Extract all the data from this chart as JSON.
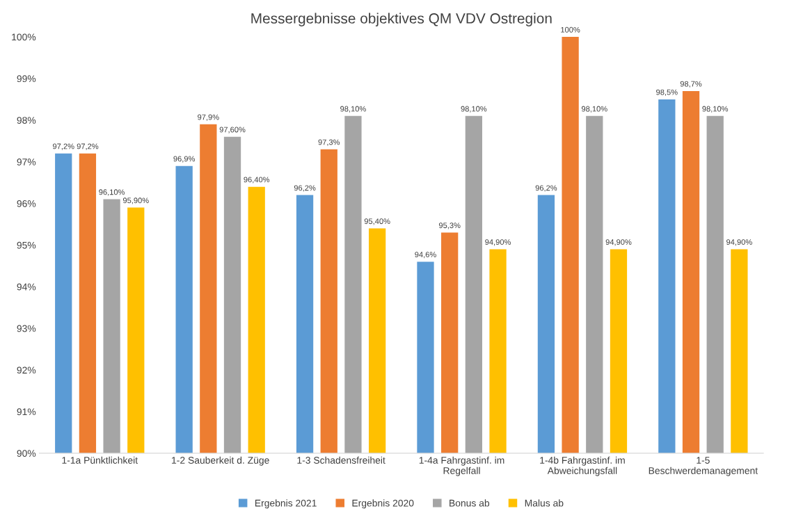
{
  "chart_data": {
    "type": "bar",
    "title": "Messergebnisse objektives QM VDV Ostregion",
    "categories": [
      "1-1a Pünktlichkeit",
      "1-2 Sauberkeit d. Züge",
      "1-3 Schadensfreiheit",
      "1-4a Fahrgastinf. im\nRegelfall",
      "1-4b Fahrgastinf. im\nAbweichungsfall",
      "1-5\nBeschwerdemanagement"
    ],
    "series": [
      {
        "name": "Ergebnis 2021",
        "color": "#5b9bd5",
        "values": [
          97.2,
          96.9,
          96.2,
          94.6,
          96.2,
          98.5
        ],
        "value_labels": [
          "97,2%",
          "96,9%",
          "96,2%",
          "94,6%",
          "96,2%",
          "98,5%"
        ]
      },
      {
        "name": "Ergebnis 2020",
        "color": "#ed7d31",
        "values": [
          97.2,
          97.9,
          97.3,
          95.3,
          100,
          98.7
        ],
        "value_labels": [
          "97,2%",
          "97,9%",
          "97,3%",
          "95,3%",
          "100%",
          "98,7%"
        ]
      },
      {
        "name": "Bonus ab",
        "color": "#a5a5a5",
        "values": [
          96.1,
          97.6,
          98.1,
          98.1,
          98.1,
          98.1
        ],
        "value_labels": [
          "96,10%",
          "97,60%",
          "98,10%",
          "98,10%",
          "98,10%",
          "98,10%"
        ]
      },
      {
        "name": "Malus ab",
        "color": "#ffc000",
        "values": [
          95.9,
          96.4,
          95.4,
          94.9,
          94.9,
          94.9
        ],
        "value_labels": [
          "95,90%",
          "96,40%",
          "95,40%",
          "94,90%",
          "94,90%",
          "94,90%"
        ]
      }
    ],
    "ylim": [
      90,
      100
    ],
    "yticks": [
      {
        "value": 90,
        "label": "90%"
      },
      {
        "value": 91,
        "label": "91%"
      },
      {
        "value": 92,
        "label": "92%"
      },
      {
        "value": 93,
        "label": "93%"
      },
      {
        "value": 94,
        "label": "94%"
      },
      {
        "value": 95,
        "label": "95%"
      },
      {
        "value": 96,
        "label": "96%"
      },
      {
        "value": 97,
        "label": "97%"
      },
      {
        "value": 98,
        "label": "98%"
      },
      {
        "value": 99,
        "label": "99%"
      },
      {
        "value": 100,
        "label": "100%"
      }
    ],
    "grid": false,
    "legend": "bottom"
  }
}
